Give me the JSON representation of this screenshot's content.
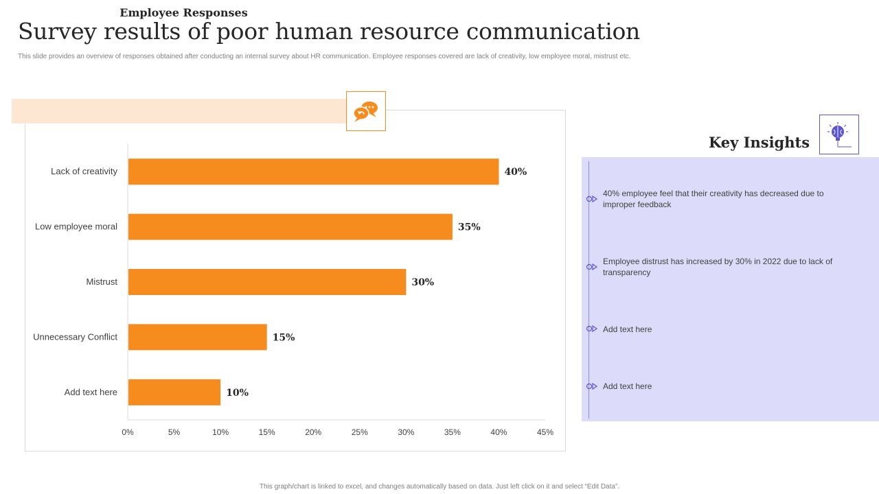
{
  "page": {
    "title": "Survey results of poor human resource communication",
    "subtitle": "This slide provides an overview of responses obtained after conducting an internal survey about HR communication.  Employee  responses covered are lack of creativity, low employee moral, mistrust etc.",
    "footer": "This graph/chart is linked to excel, and changes automatically based on data. Just left click on it and select “Edit Data”."
  },
  "chart_header": {
    "title": "Employee Responses",
    "icon": "chat-bubbles-icon"
  },
  "chart_data": {
    "type": "bar",
    "orientation": "horizontal",
    "title": "Employee Responses",
    "categories": [
      "Lack of creativity",
      "Low employee moral",
      "Mistrust",
      "Unnecessary Conflict",
      "Add text here"
    ],
    "values": [
      40,
      35,
      30,
      15,
      10
    ],
    "value_labels": [
      "40%",
      "35%",
      "30%",
      "15%",
      "10%"
    ],
    "xticks": [
      "0%",
      "5%",
      "10%",
      "15%",
      "20%",
      "25%",
      "30%",
      "35%",
      "40%",
      "45%"
    ],
    "xlim": [
      0,
      45
    ],
    "xlabel": "",
    "ylabel": "",
    "grid": false,
    "bar_color": "#f78c1e"
  },
  "insights": {
    "title": "Key Insights",
    "icon": "brain-bulb-icon",
    "items": [
      "40% employee feel that their creativity has decreased due to improper feedback",
      "Employee distrust has increased by 30% in 2022 due to lack of transparency",
      "Add text here",
      "Add text here"
    ]
  },
  "colors": {
    "accent": "#f78c1e",
    "panel": "#dcdcfa",
    "panel_accent": "#5a55d6",
    "header_band": "#fde7d3"
  }
}
